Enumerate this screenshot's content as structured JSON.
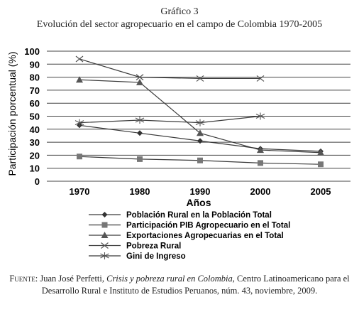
{
  "caption": {
    "number": "Gráfico 3",
    "title": "Evolución del sector agropecuario en el campo de Colombia 1970-2005"
  },
  "chart_data": {
    "type": "line",
    "title": "Evolución del sector agropecuario en el campo de Colombia 1970-2005",
    "xlabel": "Años",
    "ylabel": "Participación porcentual (%)",
    "categories": [
      "1970",
      "1980",
      "1990",
      "2000",
      "2005"
    ],
    "ylim": [
      0,
      100
    ],
    "yticks": [
      0,
      10,
      20,
      30,
      40,
      50,
      60,
      70,
      80,
      90,
      100
    ],
    "grid": true,
    "legend_position": "bottom",
    "series": [
      {
        "name": "Población Rural en la Población Total",
        "marker": "diamond",
        "values": [
          43,
          37,
          31,
          25,
          23
        ]
      },
      {
        "name": "Participación PIB Agropecuario en el Total",
        "marker": "square",
        "values": [
          19,
          17,
          16,
          14,
          13
        ]
      },
      {
        "name": "Exportaciones Agropecuarias en el Total",
        "marker": "triangle",
        "values": [
          78,
          76,
          37,
          24,
          22
        ]
      },
      {
        "name": "Pobreza Rural",
        "marker": "x",
        "values": [
          94,
          80,
          79,
          79,
          null
        ]
      },
      {
        "name": "Gini de Ingreso",
        "marker": "star",
        "values": [
          45,
          47,
          45,
          50,
          null
        ]
      }
    ]
  },
  "source": {
    "label": "Fuente:",
    "author": "Juan José Perfetti,",
    "work_title": "Crisis y pobreza rural en Colombia",
    "details": ", Centro Latinoamericano para el Desarrollo Rural e Instituto de Estudios Peruanos, núm. 43, noviembre, 2009."
  },
  "colors": {
    "line": "#3a3a3a",
    "marker": "#555555",
    "grid": "#444444"
  }
}
